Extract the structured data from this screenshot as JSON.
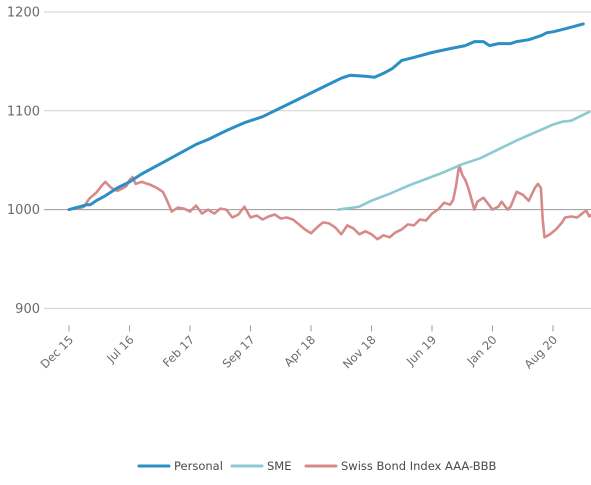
{
  "chart_data": {
    "type": "line",
    "title": "",
    "xlabel": "",
    "ylabel": "",
    "ylim": [
      880,
      1215
    ],
    "y_ticks": [
      900,
      1000,
      1100,
      1200
    ],
    "x_ticks": [
      "Dec 15",
      "Jul 16",
      "Feb 17",
      "Sep 17",
      "Apr 18",
      "Nov 18",
      "Jun 19",
      "Jan 20",
      "Aug 20"
    ],
    "grid": true,
    "legend_position": "bottom-center",
    "series": [
      {
        "name": "Personal",
        "color": "#2b8fc6",
        "points": [
          [
            0,
            1000
          ],
          [
            0.3,
            1005
          ],
          [
            0.35,
            1005
          ],
          [
            0.45,
            1009
          ],
          [
            0.6,
            1014
          ],
          [
            0.8,
            1022
          ],
          [
            1.0,
            1028
          ],
          [
            1.2,
            1036
          ],
          [
            1.5,
            1046
          ],
          [
            1.8,
            1056
          ],
          [
            2.1,
            1066
          ],
          [
            2.3,
            1071
          ],
          [
            2.6,
            1080
          ],
          [
            2.9,
            1088
          ],
          [
            3.2,
            1094
          ],
          [
            3.6,
            1106
          ],
          [
            4.0,
            1118
          ],
          [
            4.3,
            1127
          ],
          [
            4.5,
            1133
          ],
          [
            4.65,
            1136
          ],
          [
            4.9,
            1135
          ],
          [
            5.05,
            1134
          ],
          [
            5.2,
            1138
          ],
          [
            5.35,
            1143
          ],
          [
            5.5,
            1151
          ],
          [
            5.7,
            1154
          ],
          [
            6.0,
            1159
          ],
          [
            6.3,
            1163
          ],
          [
            6.55,
            1166
          ],
          [
            6.7,
            1170
          ],
          [
            6.85,
            1170
          ],
          [
            6.95,
            1166
          ],
          [
            7.1,
            1168
          ],
          [
            7.3,
            1168
          ],
          [
            7.4,
            1170
          ],
          [
            7.6,
            1172
          ],
          [
            7.8,
            1176
          ],
          [
            7.9,
            1179
          ],
          [
            8.0,
            1180
          ],
          [
            8.2,
            1183
          ],
          [
            8.5,
            1188
          ]
        ]
      },
      {
        "name": "SME",
        "color": "#8ccad3",
        "points": [
          [
            4.45,
            1000
          ],
          [
            4.7,
            1002
          ],
          [
            4.8,
            1003
          ],
          [
            5.0,
            1009
          ],
          [
            5.3,
            1016
          ],
          [
            5.6,
            1024
          ],
          [
            5.9,
            1031
          ],
          [
            6.2,
            1038
          ],
          [
            6.5,
            1046
          ],
          [
            6.8,
            1052
          ],
          [
            7.1,
            1061
          ],
          [
            7.4,
            1070
          ],
          [
            7.7,
            1078
          ],
          [
            8.0,
            1086
          ],
          [
            8.15,
            1089
          ],
          [
            8.3,
            1090
          ],
          [
            8.5,
            1096
          ],
          [
            8.6,
            1099
          ]
        ]
      },
      {
        "name": "Swiss Bond Index AAA-BBB",
        "color": "#d88a8a",
        "points": [
          [
            0.15,
            1001
          ],
          [
            0.25,
            1003
          ],
          [
            0.3,
            1008
          ],
          [
            0.35,
            1012
          ],
          [
            0.45,
            1017
          ],
          [
            0.55,
            1025
          ],
          [
            0.6,
            1028
          ],
          [
            0.7,
            1022
          ],
          [
            0.8,
            1019
          ],
          [
            0.9,
            1022
          ],
          [
            0.95,
            1024
          ],
          [
            1.0,
            1030
          ],
          [
            1.05,
            1033
          ],
          [
            1.1,
            1026
          ],
          [
            1.2,
            1028
          ],
          [
            1.35,
            1025
          ],
          [
            1.45,
            1022
          ],
          [
            1.55,
            1018
          ],
          [
            1.6,
            1012
          ],
          [
            1.65,
            1005
          ],
          [
            1.7,
            998
          ],
          [
            1.8,
            1002
          ],
          [
            1.9,
            1001
          ],
          [
            2.0,
            998
          ],
          [
            2.1,
            1004
          ],
          [
            2.2,
            996
          ],
          [
            2.3,
            1000
          ],
          [
            2.4,
            996
          ],
          [
            2.5,
            1001
          ],
          [
            2.6,
            1000
          ],
          [
            2.7,
            992
          ],
          [
            2.8,
            995
          ],
          [
            2.9,
            1003
          ],
          [
            3.0,
            992
          ],
          [
            3.1,
            994
          ],
          [
            3.2,
            990
          ],
          [
            3.3,
            993
          ],
          [
            3.4,
            995
          ],
          [
            3.5,
            991
          ],
          [
            3.6,
            992
          ],
          [
            3.7,
            990
          ],
          [
            3.8,
            985
          ],
          [
            3.9,
            980
          ],
          [
            4.0,
            976
          ],
          [
            4.1,
            982
          ],
          [
            4.2,
            987
          ],
          [
            4.3,
            986
          ],
          [
            4.4,
            982
          ],
          [
            4.5,
            975
          ],
          [
            4.6,
            984
          ],
          [
            4.7,
            981
          ],
          [
            4.8,
            975
          ],
          [
            4.9,
            978
          ],
          [
            5.0,
            975
          ],
          [
            5.1,
            970
          ],
          [
            5.2,
            974
          ],
          [
            5.3,
            972
          ],
          [
            5.4,
            977
          ],
          [
            5.5,
            980
          ],
          [
            5.6,
            985
          ],
          [
            5.7,
            984
          ],
          [
            5.8,
            990
          ],
          [
            5.9,
            989
          ],
          [
            6.0,
            996
          ],
          [
            6.1,
            1000
          ],
          [
            6.2,
            1007
          ],
          [
            6.3,
            1005
          ],
          [
            6.35,
            1010
          ],
          [
            6.4,
            1025
          ],
          [
            6.45,
            1045
          ],
          [
            6.5,
            1035
          ],
          [
            6.55,
            1030
          ],
          [
            6.6,
            1022
          ],
          [
            6.7,
            1000
          ],
          [
            6.75,
            1008
          ],
          [
            6.85,
            1012
          ],
          [
            6.95,
            1004
          ],
          [
            7.0,
            1000
          ],
          [
            7.1,
            1003
          ],
          [
            7.15,
            1008
          ],
          [
            7.25,
            1000
          ],
          [
            7.3,
            1003
          ],
          [
            7.4,
            1018
          ],
          [
            7.5,
            1015
          ],
          [
            7.6,
            1009
          ],
          [
            7.7,
            1022
          ],
          [
            7.75,
            1026
          ],
          [
            7.8,
            1022
          ],
          [
            7.83,
            990
          ],
          [
            7.86,
            972
          ],
          [
            7.95,
            975
          ],
          [
            8.05,
            980
          ],
          [
            8.15,
            987
          ],
          [
            8.2,
            992
          ],
          [
            8.3,
            993
          ],
          [
            8.4,
            992
          ],
          [
            8.5,
            997
          ],
          [
            8.55,
            999
          ],
          [
            8.6,
            993
          ],
          [
            8.7,
            998
          ],
          [
            8.75,
            997
          ]
        ]
      }
    ]
  }
}
